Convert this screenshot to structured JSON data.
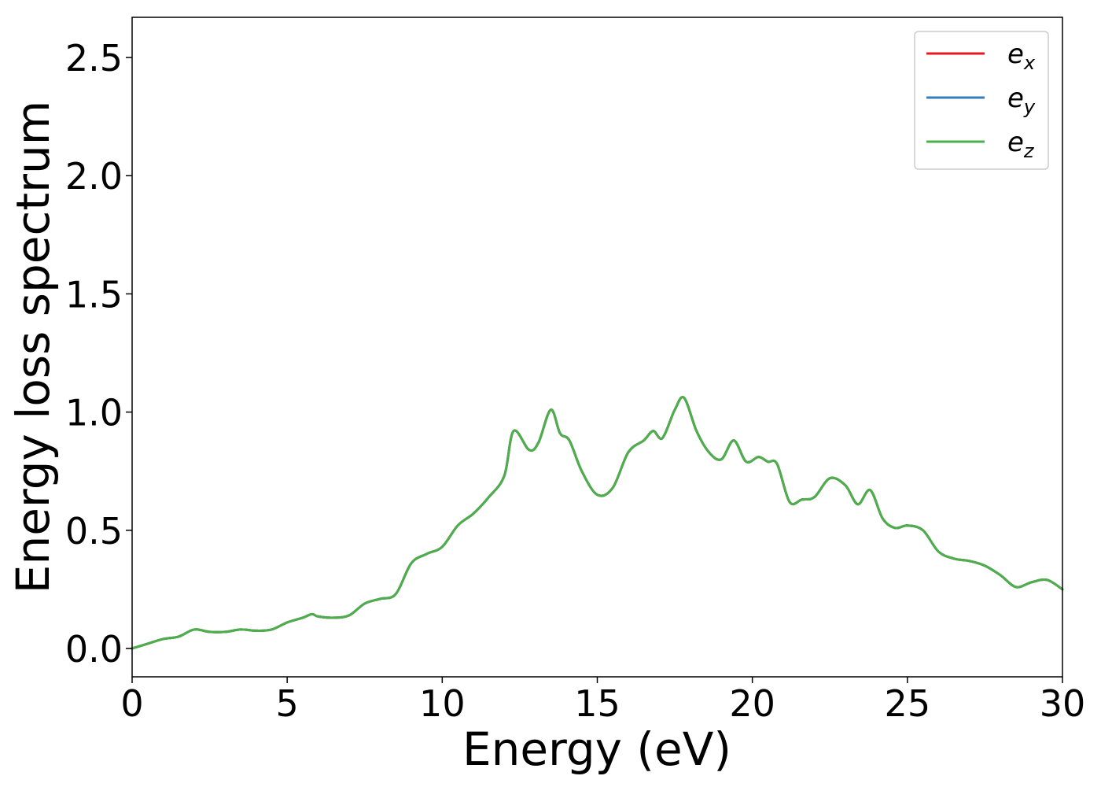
{
  "chart_data": {
    "type": "line",
    "xlabel": "Energy (eV)",
    "ylabel": "Energy loss spectrum",
    "xlim": [
      0,
      30
    ],
    "ylim": [
      -0.12,
      2.67
    ],
    "grid": false,
    "legend_position": "top-right",
    "x_ticks": [
      0,
      5,
      10,
      15,
      20,
      25,
      30
    ],
    "x_tick_labels": [
      "0",
      "5",
      "10",
      "15",
      "20",
      "25",
      "30"
    ],
    "y_ticks": [
      0.0,
      0.5,
      1.0,
      1.5,
      2.0,
      2.5
    ],
    "y_tick_labels": [
      "0.0",
      "0.5",
      "1.0",
      "1.5",
      "2.0",
      "2.5"
    ],
    "x": [
      0,
      0.5,
      1,
      1.5,
      2,
      2.5,
      3,
      3.5,
      4,
      4.5,
      5,
      5.5,
      5.8,
      6,
      6.5,
      7,
      7.5,
      8,
      8.5,
      9,
      9.5,
      10,
      10.5,
      11,
      11.5,
      12,
      12.3,
      12.8,
      13.1,
      13.5,
      13.8,
      14.1,
      14.5,
      15,
      15.5,
      16,
      16.5,
      16.8,
      17.1,
      17.5,
      17.8,
      18.2,
      18.6,
      19,
      19.4,
      19.8,
      20.2,
      20.5,
      20.8,
      21.2,
      21.6,
      22,
      22.5,
      23,
      23.4,
      23.8,
      24.2,
      24.6,
      25,
      25.5,
      26,
      26.5,
      27,
      27.5,
      28,
      28.5,
      29,
      29.5,
      30
    ],
    "series": [
      {
        "name": "e",
        "subscript": "x",
        "color": "#e41a1c",
        "values": [
          0,
          0.02,
          0.04,
          0.05,
          0.08,
          0.07,
          0.07,
          0.08,
          0.075,
          0.08,
          0.11,
          0.13,
          0.145,
          0.135,
          0.13,
          0.14,
          0.19,
          0.21,
          0.23,
          0.36,
          0.4,
          0.43,
          0.52,
          0.57,
          0.64,
          0.73,
          0.92,
          0.84,
          0.87,
          1.01,
          0.91,
          0.88,
          0.75,
          0.65,
          0.68,
          0.83,
          0.88,
          0.92,
          0.89,
          1.01,
          1.06,
          0.92,
          0.83,
          0.8,
          0.88,
          0.79,
          0.81,
          0.79,
          0.78,
          0.62,
          0.63,
          0.64,
          0.72,
          0.69,
          0.61,
          0.67,
          0.55,
          0.51,
          0.52,
          0.5,
          0.41,
          0.38,
          0.37,
          0.35,
          0.31,
          0.26,
          0.28,
          0.29,
          0.25
        ]
      },
      {
        "name": "e",
        "subscript": "y",
        "color": "#377eb8",
        "values": [
          0,
          0.02,
          0.04,
          0.05,
          0.08,
          0.07,
          0.07,
          0.08,
          0.075,
          0.08,
          0.11,
          0.13,
          0.145,
          0.135,
          0.13,
          0.14,
          0.19,
          0.21,
          0.23,
          0.36,
          0.4,
          0.43,
          0.52,
          0.57,
          0.64,
          0.73,
          0.92,
          0.84,
          0.87,
          1.01,
          0.91,
          0.88,
          0.75,
          0.65,
          0.68,
          0.83,
          0.88,
          0.92,
          0.89,
          1.01,
          1.06,
          0.92,
          0.83,
          0.8,
          0.88,
          0.79,
          0.81,
          0.79,
          0.78,
          0.62,
          0.63,
          0.64,
          0.72,
          0.69,
          0.61,
          0.67,
          0.55,
          0.51,
          0.52,
          0.5,
          0.41,
          0.38,
          0.37,
          0.35,
          0.31,
          0.26,
          0.28,
          0.29,
          0.25
        ]
      },
      {
        "name": "e",
        "subscript": "z",
        "color": "#4daf4a",
        "values": [
          0,
          0.02,
          0.04,
          0.05,
          0.08,
          0.07,
          0.07,
          0.08,
          0.075,
          0.08,
          0.11,
          0.13,
          0.145,
          0.135,
          0.13,
          0.14,
          0.19,
          0.21,
          0.23,
          0.36,
          0.4,
          0.43,
          0.52,
          0.57,
          0.64,
          0.73,
          0.92,
          0.84,
          0.87,
          1.01,
          0.91,
          0.88,
          0.75,
          0.65,
          0.68,
          0.83,
          0.88,
          0.92,
          0.89,
          1.01,
          1.06,
          0.92,
          0.83,
          0.8,
          0.88,
          0.79,
          0.81,
          0.79,
          0.78,
          0.62,
          0.63,
          0.64,
          0.72,
          0.69,
          0.61,
          0.67,
          0.55,
          0.51,
          0.52,
          0.5,
          0.41,
          0.38,
          0.37,
          0.35,
          0.31,
          0.26,
          0.28,
          0.29,
          0.25
        ]
      }
    ]
  }
}
